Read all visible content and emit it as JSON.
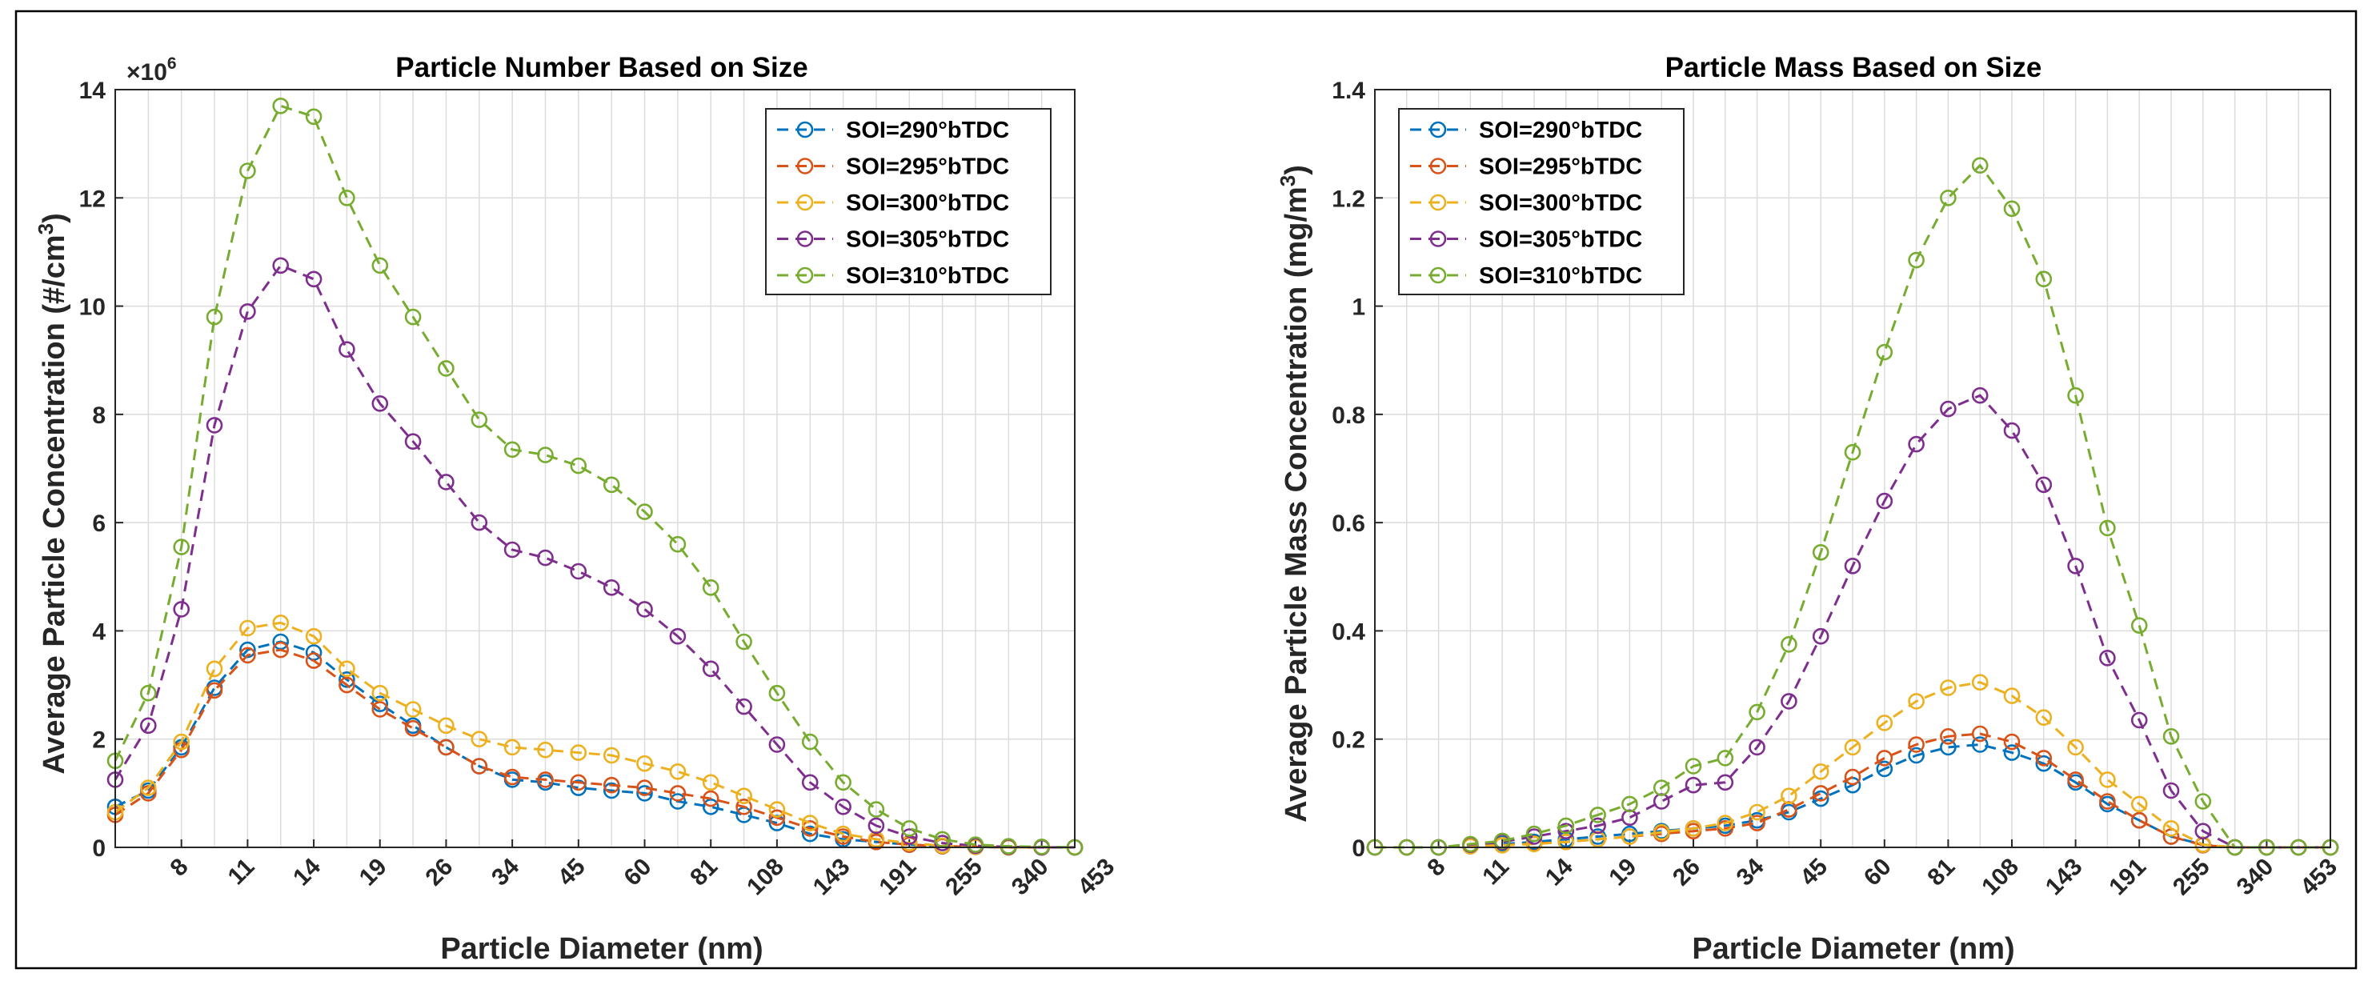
{
  "chart_data": [
    {
      "type": "line",
      "title": "Particle Number Based on Size",
      "xlabel": "Particle Diameter (nm)",
      "ylabel_pre": "Average Particle Concentration (#/cm",
      "ylabel_sup": "3",
      "ylabel_post": ")",
      "exponent_text": "×10",
      "exponent_sup": "6",
      "xlim": [
        0,
        29
      ],
      "ylim": [
        0,
        14
      ],
      "yticks": [
        0,
        2,
        4,
        6,
        8,
        10,
        12,
        14
      ],
      "xticks": [
        {
          "pos": 2,
          "label": "8"
        },
        {
          "pos": 4,
          "label": "11"
        },
        {
          "pos": 6,
          "label": "14"
        },
        {
          "pos": 8,
          "label": "19"
        },
        {
          "pos": 10,
          "label": "26"
        },
        {
          "pos": 12,
          "label": "34"
        },
        {
          "pos": 14,
          "label": "45"
        },
        {
          "pos": 16,
          "label": "60"
        },
        {
          "pos": 18,
          "label": "81"
        },
        {
          "pos": 20,
          "label": "108"
        },
        {
          "pos": 22,
          "label": "143"
        },
        {
          "pos": 24,
          "label": "191"
        },
        {
          "pos": 26,
          "label": "255"
        },
        {
          "pos": 28,
          "label": "340"
        },
        {
          "pos": 30,
          "label": "453"
        }
      ],
      "legend_position": "top-right",
      "series": [
        {
          "name": "SOI=290°bTDC",
          "color": "#0072BD",
          "values": [
            0.75,
            1.05,
            1.85,
            2.95,
            3.65,
            3.8,
            3.6,
            3.1,
            2.65,
            2.25,
            1.85,
            1.5,
            1.25,
            1.2,
            1.1,
            1.05,
            1.0,
            0.85,
            0.75,
            0.6,
            0.45,
            0.25,
            0.15,
            0.1,
            0.05,
            0.02,
            0.01,
            0.0,
            0.0,
            0.0,
            0.0
          ]
        },
        {
          "name": "SOI=295°bTDC",
          "color": "#D95319",
          "values": [
            0.6,
            1.0,
            1.8,
            2.9,
            3.55,
            3.65,
            3.45,
            3.0,
            2.55,
            2.2,
            1.85,
            1.5,
            1.3,
            1.25,
            1.2,
            1.15,
            1.1,
            1.0,
            0.9,
            0.75,
            0.55,
            0.35,
            0.2,
            0.1,
            0.05,
            0.02,
            0.01,
            0.0,
            0.0,
            0.0,
            0.0
          ]
        },
        {
          "name": "SOI=300°bTDC",
          "color": "#EDB120",
          "values": [
            0.65,
            1.1,
            1.95,
            3.3,
            4.05,
            4.15,
            3.9,
            3.3,
            2.85,
            2.55,
            2.25,
            2.0,
            1.85,
            1.8,
            1.75,
            1.7,
            1.55,
            1.4,
            1.2,
            0.95,
            0.7,
            0.45,
            0.25,
            0.15,
            0.08,
            0.03,
            0.01,
            0.0,
            0.0,
            0.0,
            0.0
          ]
        },
        {
          "name": "SOI=305°bTDC",
          "color": "#7E2F8E",
          "values": [
            1.25,
            2.25,
            4.4,
            7.8,
            9.9,
            10.75,
            10.5,
            9.2,
            8.2,
            7.5,
            6.75,
            6.0,
            5.5,
            5.35,
            5.1,
            4.8,
            4.4,
            3.9,
            3.3,
            2.6,
            1.9,
            1.2,
            0.75,
            0.4,
            0.2,
            0.08,
            0.03,
            0.01,
            0.0,
            0.0,
            0.0
          ]
        },
        {
          "name": "SOI=310°bTDC",
          "color": "#77AC30",
          "values": [
            1.6,
            2.85,
            5.55,
            9.8,
            12.5,
            13.7,
            13.5,
            12.0,
            10.75,
            9.8,
            8.85,
            7.9,
            7.35,
            7.25,
            7.05,
            6.7,
            6.2,
            5.6,
            4.8,
            3.8,
            2.85,
            1.95,
            1.2,
            0.7,
            0.35,
            0.15,
            0.05,
            0.02,
            0.01,
            0.0,
            0.0
          ]
        }
      ]
    },
    {
      "type": "line",
      "title": "Particle Mass Based on Size",
      "xlabel": "Particle Diameter (nm)",
      "ylabel_pre": "Average Particle Mass Concentration (mg/m",
      "ylabel_sup": "3",
      "ylabel_post": ")",
      "exponent_text": "",
      "exponent_sup": "",
      "xlim": [
        0,
        30
      ],
      "ylim": [
        0,
        1.4
      ],
      "yticks": [
        0,
        0.2,
        0.4,
        0.6,
        0.8,
        1,
        1.2,
        1.4
      ],
      "xticks": [
        {
          "pos": 2,
          "label": "8"
        },
        {
          "pos": 4,
          "label": "11"
        },
        {
          "pos": 6,
          "label": "14"
        },
        {
          "pos": 8,
          "label": "19"
        },
        {
          "pos": 10,
          "label": "26"
        },
        {
          "pos": 12,
          "label": "34"
        },
        {
          "pos": 14,
          "label": "45"
        },
        {
          "pos": 16,
          "label": "60"
        },
        {
          "pos": 18,
          "label": "81"
        },
        {
          "pos": 20,
          "label": "108"
        },
        {
          "pos": 22,
          "label": "143"
        },
        {
          "pos": 24,
          "label": "191"
        },
        {
          "pos": 26,
          "label": "255"
        },
        {
          "pos": 28,
          "label": "340"
        },
        {
          "pos": 30,
          "label": "453"
        }
      ],
      "legend_position": "top-left",
      "series": [
        {
          "name": "SOI=290°bTDC",
          "color": "#0072BD",
          "values": [
            0.0,
            0.0,
            0.0,
            0.003,
            0.006,
            0.01,
            0.015,
            0.02,
            0.025,
            0.03,
            0.035,
            0.04,
            0.05,
            0.065,
            0.09,
            0.115,
            0.145,
            0.17,
            0.185,
            0.19,
            0.175,
            0.155,
            0.12,
            0.08,
            0.05,
            0.02,
            0.005,
            0.0,
            0.0,
            0.0,
            0.0
          ]
        },
        {
          "name": "SOI=295°bTDC",
          "color": "#D95319",
          "values": [
            0.0,
            0.0,
            0.0,
            0.002,
            0.004,
            0.007,
            0.01,
            0.015,
            0.02,
            0.025,
            0.03,
            0.035,
            0.045,
            0.07,
            0.1,
            0.13,
            0.165,
            0.19,
            0.205,
            0.21,
            0.195,
            0.165,
            0.125,
            0.085,
            0.05,
            0.02,
            0.004,
            0.0,
            0.0,
            0.0,
            0.0
          ]
        },
        {
          "name": "SOI=300°bTDC",
          "color": "#EDB120",
          "values": [
            0.0,
            0.0,
            0.0,
            0.002,
            0.004,
            0.006,
            0.01,
            0.015,
            0.02,
            0.028,
            0.035,
            0.045,
            0.065,
            0.095,
            0.14,
            0.185,
            0.23,
            0.27,
            0.295,
            0.305,
            0.28,
            0.24,
            0.185,
            0.125,
            0.08,
            0.035,
            0.005,
            0.0,
            0.0,
            0.0,
            0.0
          ]
        },
        {
          "name": "SOI=305°bTDC",
          "color": "#7E2F8E",
          "values": [
            0.0,
            0.0,
            0.0,
            0.005,
            0.01,
            0.02,
            0.03,
            0.04,
            0.055,
            0.085,
            0.115,
            0.12,
            0.185,
            0.27,
            0.39,
            0.52,
            0.64,
            0.745,
            0.81,
            0.835,
            0.77,
            0.67,
            0.52,
            0.35,
            0.235,
            0.105,
            0.03,
            0.0,
            0.0,
            0.0,
            0.0
          ]
        },
        {
          "name": "SOI=310°bTDC",
          "color": "#77AC30",
          "values": [
            0.0,
            0.0,
            0.0,
            0.006,
            0.012,
            0.025,
            0.04,
            0.06,
            0.08,
            0.11,
            0.15,
            0.165,
            0.25,
            0.375,
            0.545,
            0.73,
            0.915,
            1.085,
            1.2,
            1.26,
            1.18,
            1.05,
            0.835,
            0.59,
            0.41,
            0.205,
            0.085,
            0.0,
            0.0,
            0.0,
            0.0
          ]
        }
      ]
    }
  ]
}
